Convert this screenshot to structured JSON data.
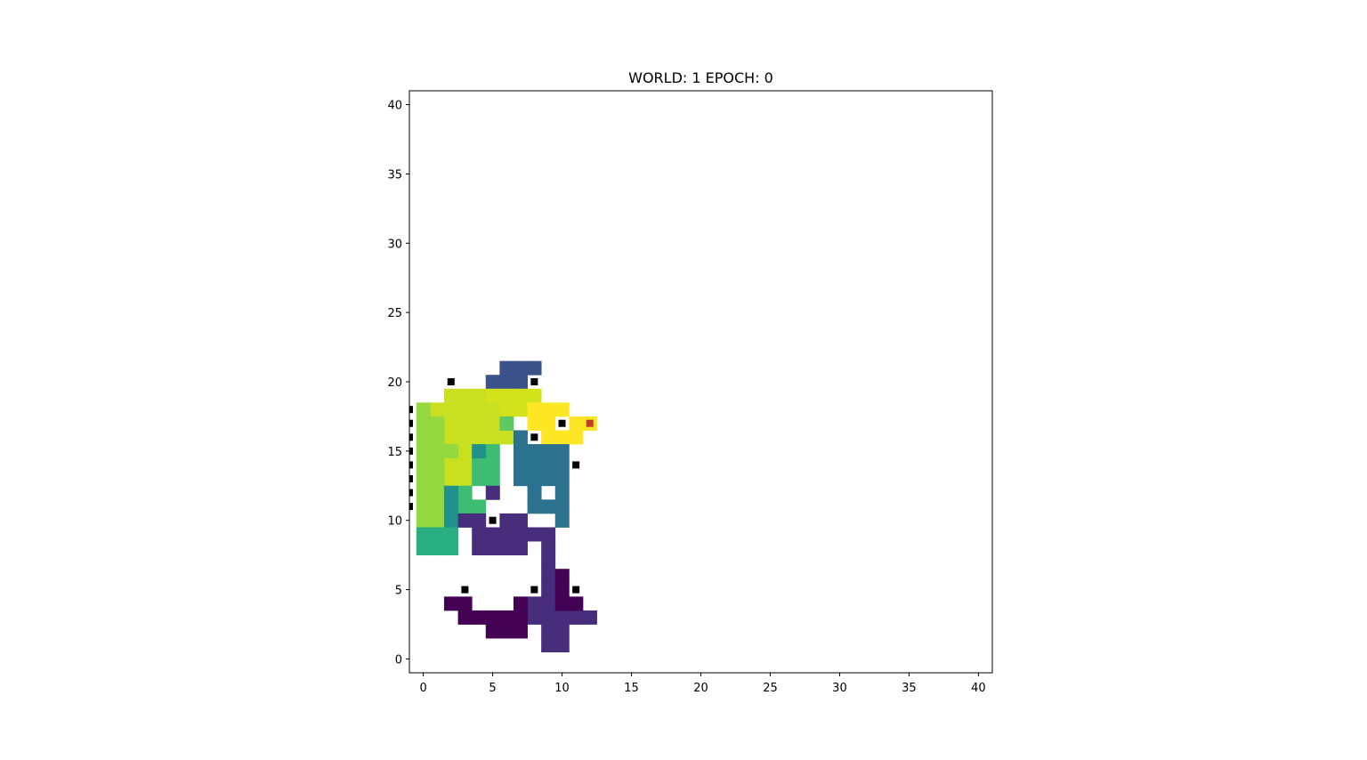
{
  "chart_data": {
    "type": "heatmap",
    "title": "WORLD: 1 EPOCH: 0",
    "xlabel": "",
    "ylabel": "",
    "xlim": [
      -1,
      41
    ],
    "ylim": [
      -1,
      41
    ],
    "xticks": [
      0,
      5,
      10,
      15,
      20,
      25,
      30,
      35,
      40
    ],
    "yticks": [
      0,
      5,
      10,
      15,
      20,
      25,
      30,
      35,
      40
    ],
    "grid": false,
    "colormap": "viridis",
    "colors": {
      "background": "#ffffff",
      "marker": "#000000",
      "agent": "#c0392b",
      "c0": "#440154",
      "c1": "#472d7b",
      "c2": "#3b528b",
      "c3": "#2c728e",
      "c4": "#21918c",
      "c5": "#28ae80",
      "c6": "#3fbc73",
      "c7": "#5ec962",
      "c8": "#95d840",
      "c9": "#addc30",
      "c10": "#c8e020",
      "c11": "#d2e21b",
      "c12": "#fde725",
      "c13": "#f5e61f"
    },
    "cells": [
      {
        "c": "c2",
        "pts": [
          [
            6,
            21
          ],
          [
            7,
            21
          ],
          [
            8,
            21
          ],
          [
            5,
            20
          ],
          [
            6,
            20
          ],
          [
            7,
            20
          ]
        ]
      },
      {
        "c": "c10",
        "pts": [
          [
            2,
            19
          ],
          [
            3,
            19
          ],
          [
            4,
            19
          ],
          [
            1,
            18
          ],
          [
            2,
            18
          ],
          [
            3,
            18
          ],
          [
            4,
            18
          ],
          [
            5,
            18
          ],
          [
            2,
            17
          ],
          [
            3,
            17
          ],
          [
            4,
            17
          ],
          [
            5,
            17
          ],
          [
            2,
            16
          ],
          [
            3,
            16
          ],
          [
            4,
            16
          ],
          [
            5,
            16
          ],
          [
            6,
            16
          ],
          [
            3,
            15
          ],
          [
            2,
            14
          ],
          [
            3,
            14
          ],
          [
            2,
            13
          ],
          [
            3,
            13
          ]
        ]
      },
      {
        "c": "c11",
        "pts": [
          [
            5,
            19
          ],
          [
            6,
            19
          ],
          [
            7,
            19
          ],
          [
            8,
            19
          ],
          [
            6,
            18
          ],
          [
            7,
            18
          ]
        ]
      },
      {
        "c": "c12",
        "pts": [
          [
            8,
            18
          ],
          [
            9,
            18
          ],
          [
            10,
            18
          ],
          [
            8,
            17
          ],
          [
            9,
            17
          ],
          [
            11,
            17
          ],
          [
            9,
            16
          ],
          [
            10,
            16
          ],
          [
            11,
            16
          ],
          [
            9,
            15
          ]
        ]
      },
      {
        "c": "c13",
        "pts": [
          [
            12,
            17
          ]
        ]
      },
      {
        "c": "c8",
        "pts": [
          [
            0,
            18
          ],
          [
            0,
            17
          ],
          [
            1,
            17
          ],
          [
            0,
            16
          ],
          [
            1,
            16
          ],
          [
            0,
            15
          ],
          [
            1,
            15
          ],
          [
            2,
            15
          ],
          [
            0,
            14
          ],
          [
            1,
            14
          ],
          [
            0,
            13
          ],
          [
            1,
            13
          ],
          [
            0,
            12
          ],
          [
            1,
            12
          ],
          [
            0,
            11
          ],
          [
            1,
            11
          ],
          [
            0,
            10
          ],
          [
            1,
            10
          ]
        ]
      },
      {
        "c": "c9",
        "pts": [
          [
            4,
            15
          ]
        ]
      },
      {
        "c": "c7",
        "pts": [
          [
            6,
            17
          ]
        ]
      },
      {
        "c": "c6",
        "pts": [
          [
            5,
            15
          ],
          [
            4,
            14
          ],
          [
            5,
            14
          ],
          [
            4,
            13
          ],
          [
            5,
            13
          ],
          [
            3,
            12
          ],
          [
            3,
            11
          ],
          [
            4,
            11
          ]
        ]
      },
      {
        "c": "c4",
        "pts": [
          [
            4,
            15.01
          ],
          [
            2,
            12
          ],
          [
            2,
            11
          ],
          [
            2,
            10
          ]
        ]
      },
      {
        "c": "c5",
        "pts": [
          [
            0,
            9
          ],
          [
            1,
            9
          ],
          [
            2,
            9
          ],
          [
            0,
            8
          ],
          [
            1,
            8
          ],
          [
            2,
            8
          ]
        ]
      },
      {
        "c": "c3",
        "pts": [
          [
            7,
            16
          ],
          [
            7,
            15
          ],
          [
            8,
            15
          ],
          [
            9,
            15.01
          ],
          [
            10,
            15
          ],
          [
            7,
            14
          ],
          [
            8,
            14
          ],
          [
            9,
            14
          ],
          [
            10,
            14
          ],
          [
            7,
            13
          ],
          [
            8,
            13
          ],
          [
            9,
            13
          ],
          [
            10,
            13
          ],
          [
            8,
            12
          ],
          [
            10,
            12
          ],
          [
            8,
            11
          ],
          [
            9,
            11
          ],
          [
            10,
            11
          ],
          [
            10,
            10
          ]
        ]
      },
      {
        "c": "c1",
        "pts": [
          [
            5,
            12
          ],
          [
            3,
            10
          ],
          [
            4,
            10
          ],
          [
            6,
            10
          ],
          [
            7,
            10
          ],
          [
            4,
            9
          ],
          [
            5,
            9
          ],
          [
            6,
            9
          ],
          [
            7,
            9
          ],
          [
            8,
            9
          ],
          [
            9,
            9
          ],
          [
            4,
            8
          ],
          [
            5,
            8
          ],
          [
            6,
            8
          ],
          [
            7,
            8
          ],
          [
            9,
            8
          ],
          [
            9,
            7
          ],
          [
            9,
            6
          ],
          [
            9,
            5
          ],
          [
            9,
            4
          ],
          [
            8,
            4
          ],
          [
            8,
            3
          ],
          [
            9,
            3
          ],
          [
            10,
            3
          ],
          [
            11,
            3
          ],
          [
            12,
            3
          ],
          [
            9,
            2
          ],
          [
            10,
            2
          ],
          [
            9,
            1
          ],
          [
            10,
            1
          ]
        ]
      },
      {
        "c": "c0",
        "pts": [
          [
            10,
            6
          ],
          [
            10,
            5
          ],
          [
            10,
            4
          ],
          [
            11,
            4
          ],
          [
            2,
            4
          ],
          [
            3,
            4
          ],
          [
            7,
            4
          ],
          [
            3,
            3
          ],
          [
            4,
            3
          ],
          [
            5,
            3
          ],
          [
            6,
            3
          ],
          [
            7,
            3
          ],
          [
            5,
            2
          ],
          [
            6,
            2
          ],
          [
            7,
            2
          ]
        ]
      }
    ],
    "markers": [
      [
        2,
        20
      ],
      [
        8,
        20
      ],
      [
        10,
        17
      ],
      [
        8,
        16
      ],
      [
        11,
        14
      ],
      [
        5,
        10
      ],
      [
        3,
        5
      ],
      [
        8,
        5
      ],
      [
        11,
        5
      ],
      [
        -1,
        18
      ],
      [
        -1,
        17
      ],
      [
        -1,
        16
      ],
      [
        -1,
        15
      ],
      [
        -1,
        14
      ],
      [
        -1,
        13
      ],
      [
        -1,
        12
      ],
      [
        -1,
        11
      ]
    ],
    "agent": [
      12,
      17
    ]
  }
}
